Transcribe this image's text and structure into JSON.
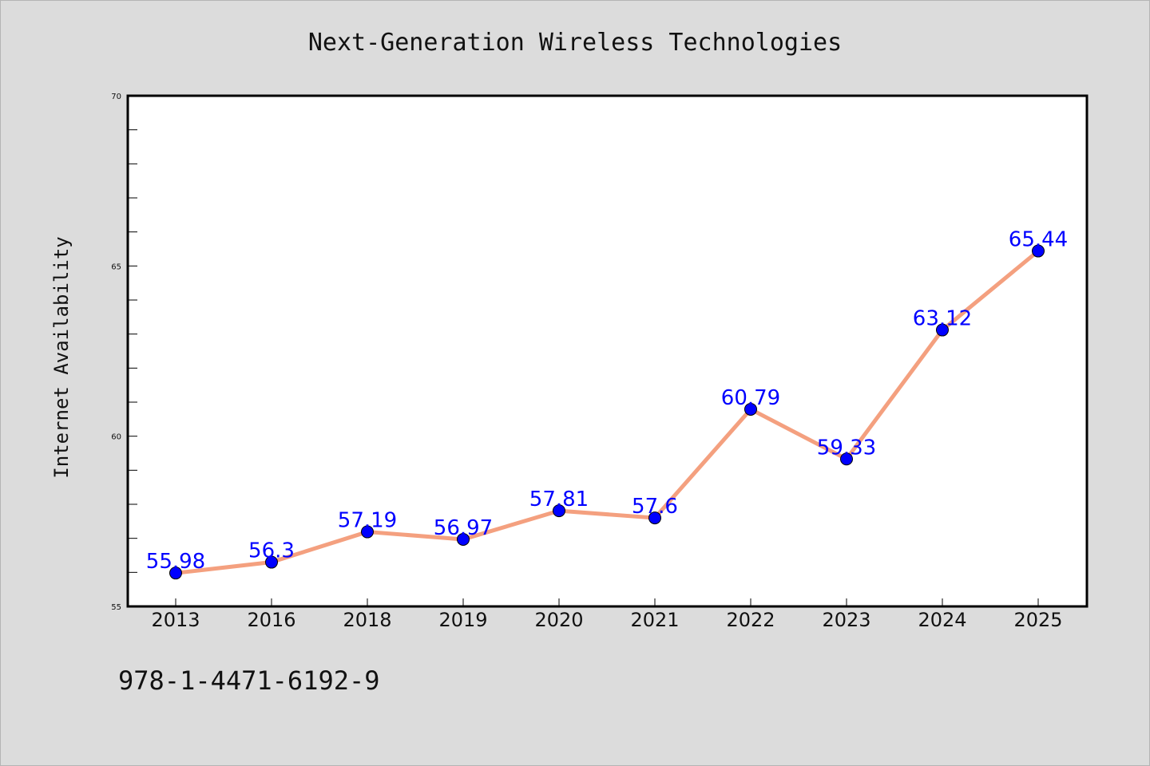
{
  "chart_data": {
    "type": "line",
    "title": "Next-Generation Wireless Technologies",
    "xlabel": "",
    "ylabel": "Internet Availability",
    "categories": [
      "2013",
      "2016",
      "2018",
      "2019",
      "2020",
      "2021",
      "2022",
      "2023",
      "2024",
      "2025"
    ],
    "series": [
      {
        "values": [
          55.98,
          56.3,
          57.19,
          56.97,
          57.81,
          57.6,
          60.79,
          59.33,
          63.12,
          65.44
        ],
        "data_labels": [
          "55.98",
          "56.3",
          "57.19",
          "56.97",
          "57.81",
          "57.6",
          "60.79",
          "59.33",
          "63.12",
          "65.44"
        ],
        "line_color": "#f4a07f",
        "marker_color": "#0000ff",
        "label_color": "#0000ff"
      }
    ],
    "ylim": [
      55,
      70
    ],
    "yticks": [
      "55",
      "60",
      "65",
      "70"
    ],
    "grid": false,
    "legend": "none"
  },
  "footer": {
    "isbn": "978-1-4471-6192-9"
  },
  "colors": {
    "background": "#dcdcdc",
    "plot_background": "#ffffff",
    "axis": "#000000"
  }
}
